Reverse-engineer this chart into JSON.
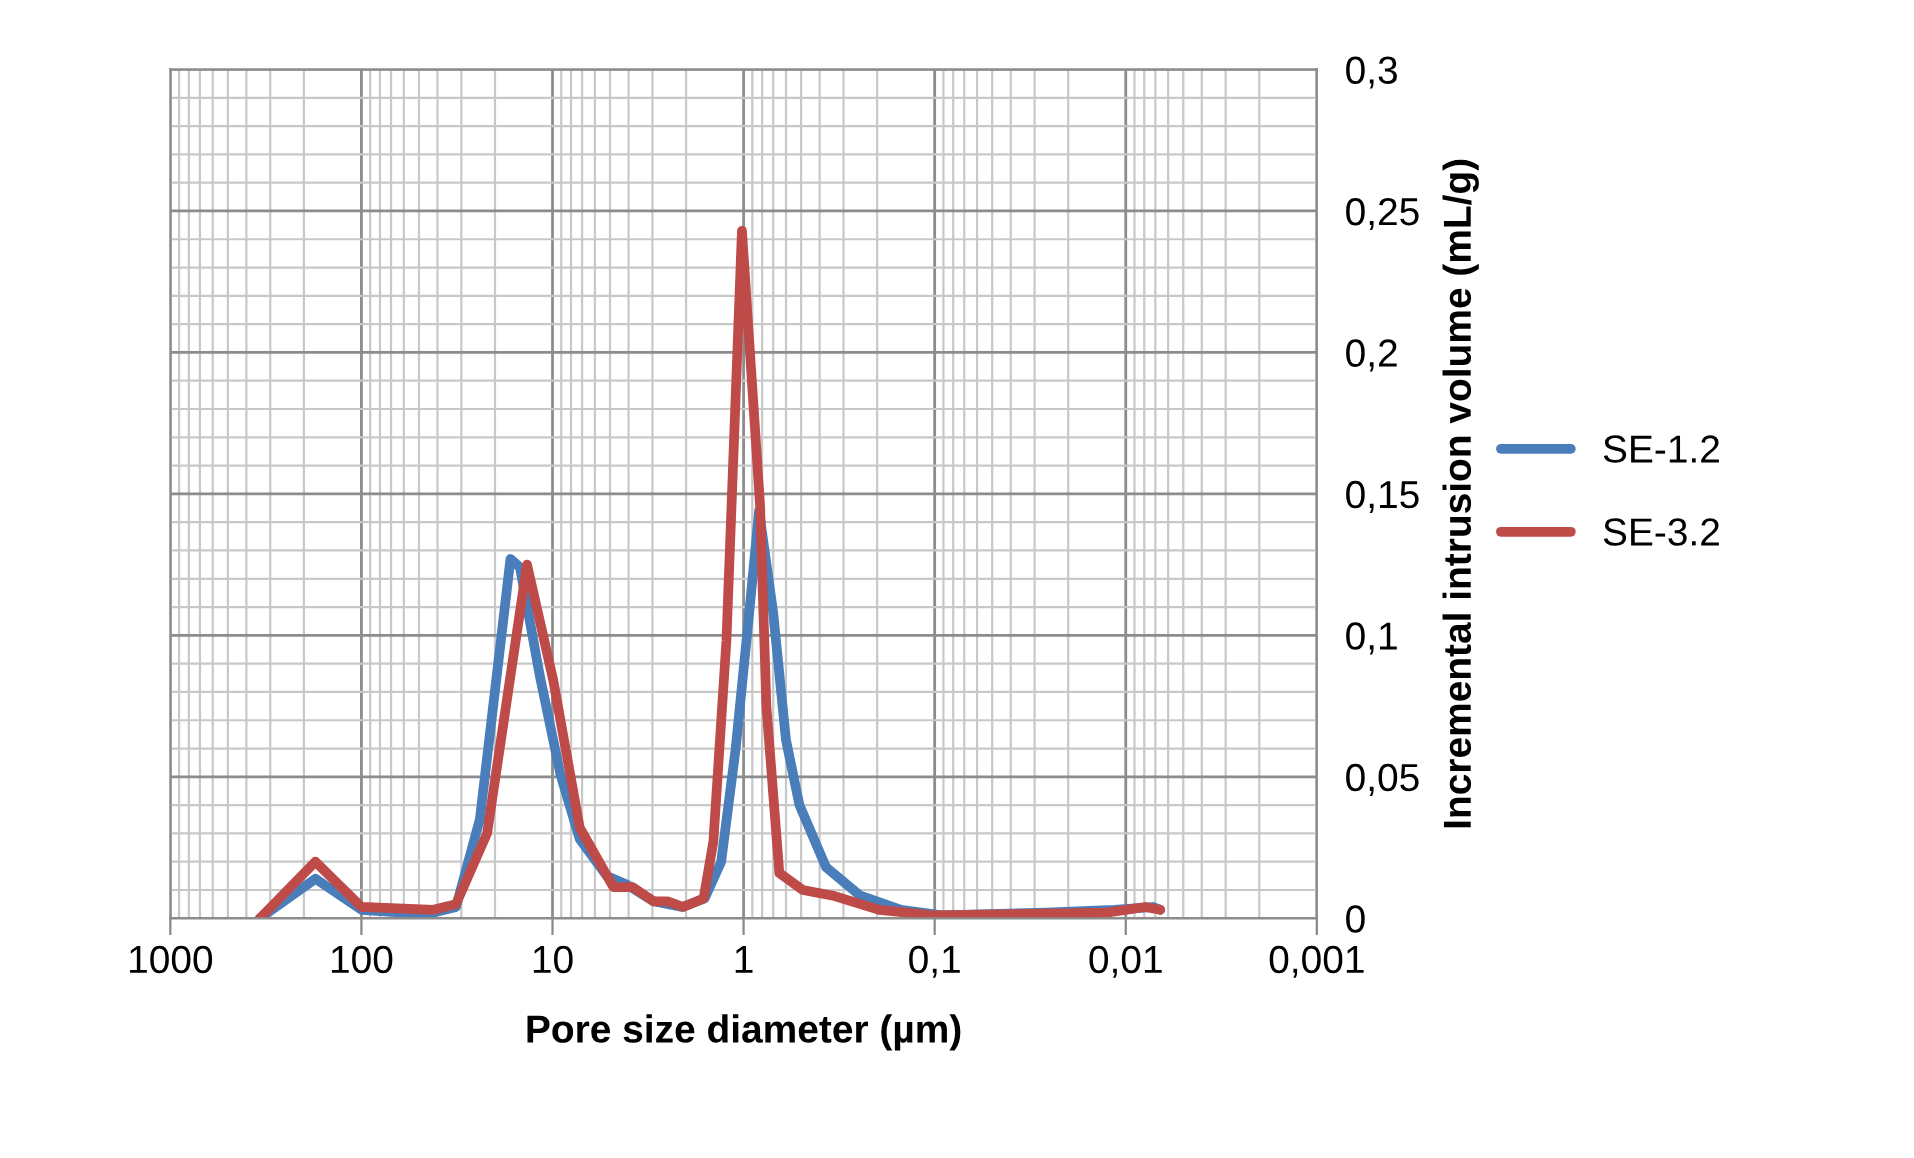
{
  "chart_data": {
    "type": "line",
    "xlabel": "Pore size diameter (µm)",
    "ylabel": "Incremental intrusion volume (mL/g)",
    "series": [
      {
        "name": "SE-1.2",
        "color": "#4a7ebb",
        "x": [
          340,
          174,
          100,
          60,
          42,
          32,
          24,
          16.6,
          14.8,
          11.6,
          9.1,
          7.2,
          5.2,
          4.1,
          2.96,
          2.1,
          1.6,
          1.31,
          1.1,
          0.95,
          0.83,
          0.7,
          0.6,
          0.51,
          0.37,
          0.245,
          0.15,
          0.09,
          0.026,
          0.0115,
          0.0072,
          0.0066
        ],
        "values": [
          0,
          0.014,
          0.003,
          0.002,
          0.002,
          0.004,
          0.035,
          0.127,
          0.124,
          0.085,
          0.051,
          0.028,
          0.015,
          0.012,
          0.006,
          0.004,
          0.007,
          0.02,
          0.06,
          0.103,
          0.144,
          0.108,
          0.063,
          0.04,
          0.018,
          0.008,
          0.003,
          0.001,
          0.002,
          0.003,
          0.004,
          0.003
        ]
      },
      {
        "name": "SE-3.2",
        "color": "#be4b48",
        "x": [
          340,
          174,
          100,
          42,
          32,
          22,
          13.6,
          9.9,
          7.2,
          4.8,
          3.8,
          2.96,
          2.5,
          2.07,
          1.62,
          1.44,
          1.23,
          1.02,
          0.82,
          0.76,
          0.65,
          0.49,
          0.34,
          0.195,
          0.1,
          0.0126,
          0.0079,
          0.0066
        ],
        "values": [
          0,
          0.02,
          0.004,
          0.003,
          0.005,
          0.03,
          0.125,
          0.084,
          0.032,
          0.011,
          0.011,
          0.006,
          0.006,
          0.004,
          0.007,
          0.027,
          0.098,
          0.243,
          0.146,
          0.075,
          0.016,
          0.01,
          0.008,
          0.003,
          0.001,
          0.002,
          0.004,
          0.003
        ]
      }
    ],
    "log": "x",
    "xlim": [
      1000,
      0.001
    ],
    "xticks": [
      1000,
      100,
      10,
      1,
      {
        "value": 0.1,
        "label": "0,1"
      },
      {
        "value": 0.01,
        "label": "0,01"
      },
      {
        "value": 0.001,
        "label": "0,001"
      }
    ],
    "ylim": [
      0,
      0.3
    ],
    "yticks": [
      0,
      {
        "value": 0.05,
        "label": "0,05"
      },
      {
        "value": 0.1,
        "label": "0,1"
      },
      {
        "value": 0.15,
        "label": "0,15"
      },
      {
        "value": 0.2,
        "label": "0,2"
      },
      {
        "value": 0.25,
        "label": "0,25"
      },
      {
        "value": 0.3,
        "label": "0,3"
      }
    ],
    "grid": true,
    "legend": "right"
  }
}
